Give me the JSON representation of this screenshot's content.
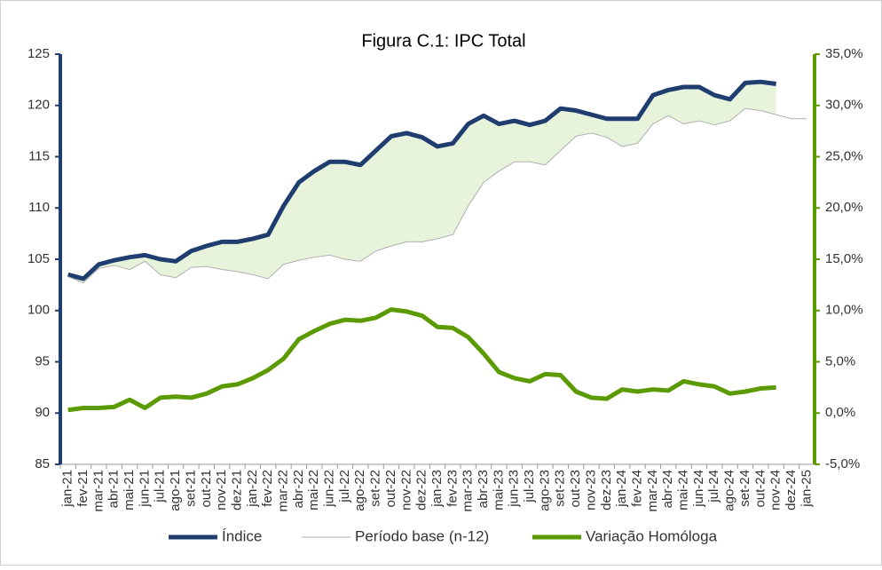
{
  "chart_data": {
    "type": "line",
    "title": "Figura C.1: IPC Total",
    "categories": [
      "jan-21",
      "fev-21",
      "mar-21",
      "abr-21",
      "mai-21",
      "jun-21",
      "jul-21",
      "ago-21",
      "set-21",
      "out-21",
      "nov-21",
      "dez-21",
      "jan-22",
      "fev-22",
      "mar-22",
      "abr-22",
      "mai-22",
      "jun-22",
      "jul-22",
      "ago-22",
      "set-22",
      "out-22",
      "nov-22",
      "dez-22",
      "jan-23",
      "fev-23",
      "mar-23",
      "abr-23",
      "mai-23",
      "jun-23",
      "jul-23",
      "ago-23",
      "set-23",
      "out-23",
      "nov-23",
      "dez-23",
      "jan-24",
      "fev-24",
      "mar-24",
      "abr-24",
      "mai-24",
      "jun-24",
      "jul-24",
      "ago-24",
      "set-24",
      "out-24",
      "nov-24",
      "dez-24",
      "jan-25"
    ],
    "series": [
      {
        "name": "Índice",
        "color": "#1f3d6e",
        "values": [
          103.5,
          103.1,
          104.5,
          104.9,
          105.2,
          105.4,
          105.0,
          104.8,
          105.8,
          106.3,
          106.7,
          106.7,
          107.0,
          107.4,
          110.2,
          112.5,
          113.6,
          114.5,
          114.5,
          114.2,
          115.6,
          117.0,
          117.3,
          116.9,
          116.0,
          116.3,
          118.2,
          119.0,
          118.2,
          118.5,
          118.1,
          118.5,
          119.7,
          119.5,
          119.1,
          118.7,
          118.7,
          118.7,
          121.0,
          121.5,
          121.8,
          121.8,
          121.0,
          120.6,
          122.2,
          122.3,
          122.1,
          null,
          null
        ]
      },
      {
        "name": "Período base (n-12)",
        "color": "#b0b0b0",
        "values": [
          103.3,
          102.7,
          104.1,
          104.4,
          104.0,
          104.8,
          103.5,
          103.2,
          104.2,
          104.3,
          104.0,
          103.8,
          103.5,
          103.1,
          104.5,
          104.9,
          105.2,
          105.4,
          105.0,
          104.8,
          105.8,
          106.3,
          106.7,
          106.7,
          107.0,
          107.4,
          110.2,
          112.5,
          113.6,
          114.5,
          114.5,
          114.2,
          115.6,
          117.0,
          117.3,
          116.9,
          116.0,
          116.3,
          118.2,
          119.0,
          118.2,
          118.5,
          118.1,
          118.5,
          119.7,
          119.5,
          119.1,
          118.7,
          118.7
        ]
      },
      {
        "name": "Variação Homóloga",
        "color": "#5b9a00",
        "axis": "y2",
        "values": [
          0.3,
          0.5,
          0.5,
          0.6,
          1.3,
          0.5,
          1.5,
          1.6,
          1.5,
          1.9,
          2.6,
          2.8,
          3.4,
          4.2,
          5.3,
          7.2,
          8.0,
          8.7,
          9.1,
          9.0,
          9.3,
          10.1,
          9.9,
          9.5,
          8.4,
          8.3,
          7.4,
          5.8,
          4.0,
          3.4,
          3.1,
          3.8,
          3.7,
          2.1,
          1.5,
          1.4,
          2.3,
          2.1,
          2.3,
          2.2,
          3.1,
          2.8,
          2.6,
          1.9,
          2.1,
          2.4,
          2.5,
          null,
          null
        ]
      }
    ],
    "ylim": [
      85,
      125
    ],
    "yticks": [
      85,
      90,
      95,
      100,
      105,
      110,
      115,
      120,
      125
    ],
    "y2lim": [
      -5,
      35
    ],
    "y2ticks": [
      {
        "value": -5,
        "label": "-5,0%"
      },
      {
        "value": 0,
        "label": "0,0%"
      },
      {
        "value": 5,
        "label": "5,0%"
      },
      {
        "value": 10,
        "label": "10,0%"
      },
      {
        "value": 15,
        "label": "15,0%"
      },
      {
        "value": 20,
        "label": "20,0%"
      },
      {
        "value": 25,
        "label": "25,0%"
      },
      {
        "value": 30,
        "label": "30,0%"
      },
      {
        "value": 35,
        "label": "35,0%"
      }
    ],
    "fill_color": "#e8f3dc",
    "legend": "bottom"
  }
}
